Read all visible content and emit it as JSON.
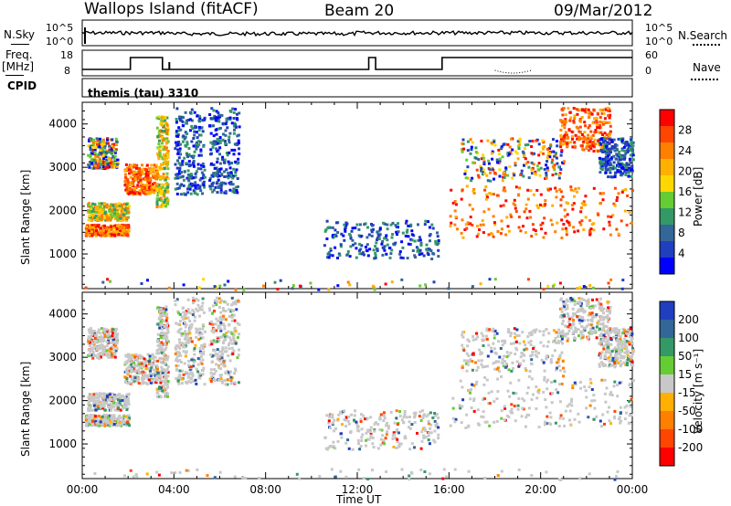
{
  "header": {
    "station": "Wallops Island (fitACF)",
    "beam": "Beam 20",
    "date": "09/Mar/2012"
  },
  "top_panels": {
    "nsky_label": "N.Sky",
    "nsearch_label": "N.Search",
    "nsky_ticks": [
      "10^5",
      "10^0"
    ],
    "nsearch_ticks": [
      "10^5",
      "10^0"
    ],
    "freq_label": "Freq.",
    "freq_unit": "[MHz]",
    "freq_ticks": [
      "18",
      "8"
    ],
    "nave_label": "Nave",
    "nave_ticks": [
      "60",
      "0"
    ],
    "cpid_label": "CPID",
    "cpid_value": "themis (tau) 3310"
  },
  "chart_data": [
    {
      "type": "heatmap",
      "title": "",
      "xlabel": "",
      "ylabel": "Slant Range [km]",
      "x_ticks": [
        "00:00",
        "04:00",
        "08:00",
        "12:00",
        "16:00",
        "20:00",
        "00:00"
      ],
      "xlim_hours": [
        0,
        24
      ],
      "ylim": [
        200,
        4500
      ],
      "y_ticks": [
        1000,
        2000,
        3000,
        4000
      ],
      "colorbar": {
        "label": "Power [dB]",
        "ticks": [
          "28",
          "24",
          "20",
          "16",
          "12",
          "8",
          "4"
        ],
        "colors": [
          "#ff0000",
          "#ff4500",
          "#ff7f00",
          "#ffb000",
          "#ffd700",
          "#66cc33",
          "#339966",
          "#336699",
          "#1f3fbf",
          "#0000ff"
        ]
      }
    },
    {
      "type": "heatmap",
      "title": "",
      "xlabel": "Time UT",
      "ylabel": "Slant Range [km]",
      "x_ticks": [
        "00:00",
        "04:00",
        "08:00",
        "12:00",
        "16:00",
        "20:00",
        "00:00"
      ],
      "xlim_hours": [
        0,
        24
      ],
      "ylim": [
        200,
        4500
      ],
      "y_ticks": [
        1000,
        2000,
        3000,
        4000
      ],
      "colorbar": {
        "label": "Velocity [m s⁻¹]",
        "ticks": [
          "200",
          "100",
          "50",
          "15",
          "-15",
          "-50",
          "-100",
          "-200"
        ],
        "colors": [
          "#1f3fbf",
          "#336699",
          "#339966",
          "#66cc33",
          "#c8c8c8",
          "#ffb000",
          "#ff7f00",
          "#ff4500",
          "#ff0000"
        ]
      }
    }
  ],
  "scatter_bands": [
    {
      "t0": 0.1,
      "t1": 2.0,
      "r0": 1450,
      "r1": 1700,
      "p": "high"
    },
    {
      "t0": 0.2,
      "t1": 2.0,
      "r0": 1800,
      "r1": 2200,
      "p": "mid"
    },
    {
      "t0": 0.2,
      "t1": 1.5,
      "r0": 3000,
      "r1": 3700,
      "p": "mixed"
    },
    {
      "t0": 1.8,
      "t1": 3.2,
      "r0": 2400,
      "r1": 3100,
      "p": "high"
    },
    {
      "t0": 3.2,
      "t1": 3.7,
      "r0": 2100,
      "r1": 4200,
      "p": "mid"
    },
    {
      "t0": 4.0,
      "t1": 5.3,
      "r0": 2400,
      "r1": 4400,
      "p": "low"
    },
    {
      "t0": 5.5,
      "t1": 6.8,
      "r0": 2400,
      "r1": 4400,
      "p": "low"
    },
    {
      "t0": 10.5,
      "t1": 15.5,
      "r0": 900,
      "r1": 1800,
      "p": "low"
    },
    {
      "t0": 16.0,
      "t1": 24.0,
      "r0": 1400,
      "r1": 2600,
      "p": "high"
    },
    {
      "t0": 16.5,
      "t1": 21.0,
      "r0": 2700,
      "r1": 3700,
      "p": "mixed"
    },
    {
      "t0": 20.8,
      "t1": 23.0,
      "r0": 3400,
      "r1": 4400,
      "p": "high"
    },
    {
      "t0": 22.5,
      "t1": 24.0,
      "r0": 2800,
      "r1": 3700,
      "p": "low"
    },
    {
      "t0": 0.0,
      "t1": 24.0,
      "r0": 200,
      "r1": 450,
      "p": "sparse"
    }
  ]
}
